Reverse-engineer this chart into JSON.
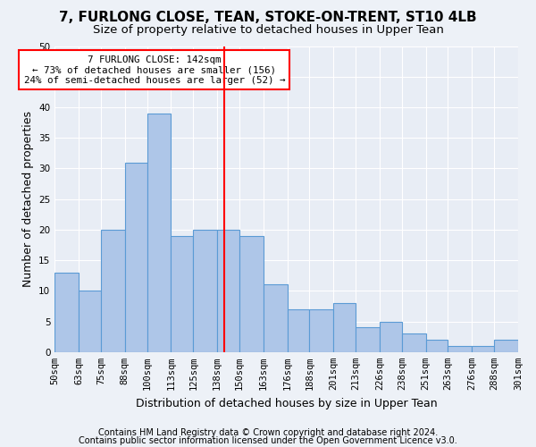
{
  "title": "7, FURLONG CLOSE, TEAN, STOKE-ON-TRENT, ST10 4LB",
  "subtitle": "Size of property relative to detached houses in Upper Tean",
  "xlabel": "Distribution of detached houses by size in Upper Tean",
  "ylabel": "Number of detached properties",
  "bin_edges": [
    50,
    63,
    75,
    88,
    100,
    113,
    125,
    138,
    150,
    163,
    176,
    188,
    201,
    213,
    226,
    238,
    251,
    263,
    276,
    288,
    301
  ],
  "bar_heights": [
    13,
    10,
    20,
    31,
    39,
    19,
    20,
    20,
    19,
    11,
    7,
    7,
    8,
    4,
    5,
    3,
    2,
    1,
    1,
    2
  ],
  "bar_color": "#aec6e8",
  "bar_edge_color": "#5b9bd5",
  "red_line_x": 142,
  "annotation_title": "7 FURLONG CLOSE: 142sqm",
  "annotation_line1": "← 73% of detached houses are smaller (156)",
  "annotation_line2": "24% of semi-detached houses are larger (52) →",
  "ylim": [
    0,
    50
  ],
  "yticks": [
    0,
    5,
    10,
    15,
    20,
    25,
    30,
    35,
    40,
    45,
    50
  ],
  "tick_labels": [
    "50sqm",
    "63sqm",
    "75sqm",
    "88sqm",
    "100sqm",
    "113sqm",
    "125sqm",
    "138sqm",
    "150sqm",
    "163sqm",
    "176sqm",
    "188sqm",
    "201sqm",
    "213sqm",
    "226sqm",
    "238sqm",
    "251sqm",
    "263sqm",
    "276sqm",
    "288sqm",
    "301sqm"
  ],
  "footer1": "Contains HM Land Registry data © Crown copyright and database right 2024.",
  "footer2": "Contains public sector information licensed under the Open Government Licence v3.0.",
  "bg_color": "#edf1f7",
  "plot_bg_color": "#e8edf5",
  "grid_color": "#ffffff",
  "title_fontsize": 11,
  "subtitle_fontsize": 9.5,
  "axis_label_fontsize": 9,
  "tick_fontsize": 7.5,
  "footer_fontsize": 7
}
